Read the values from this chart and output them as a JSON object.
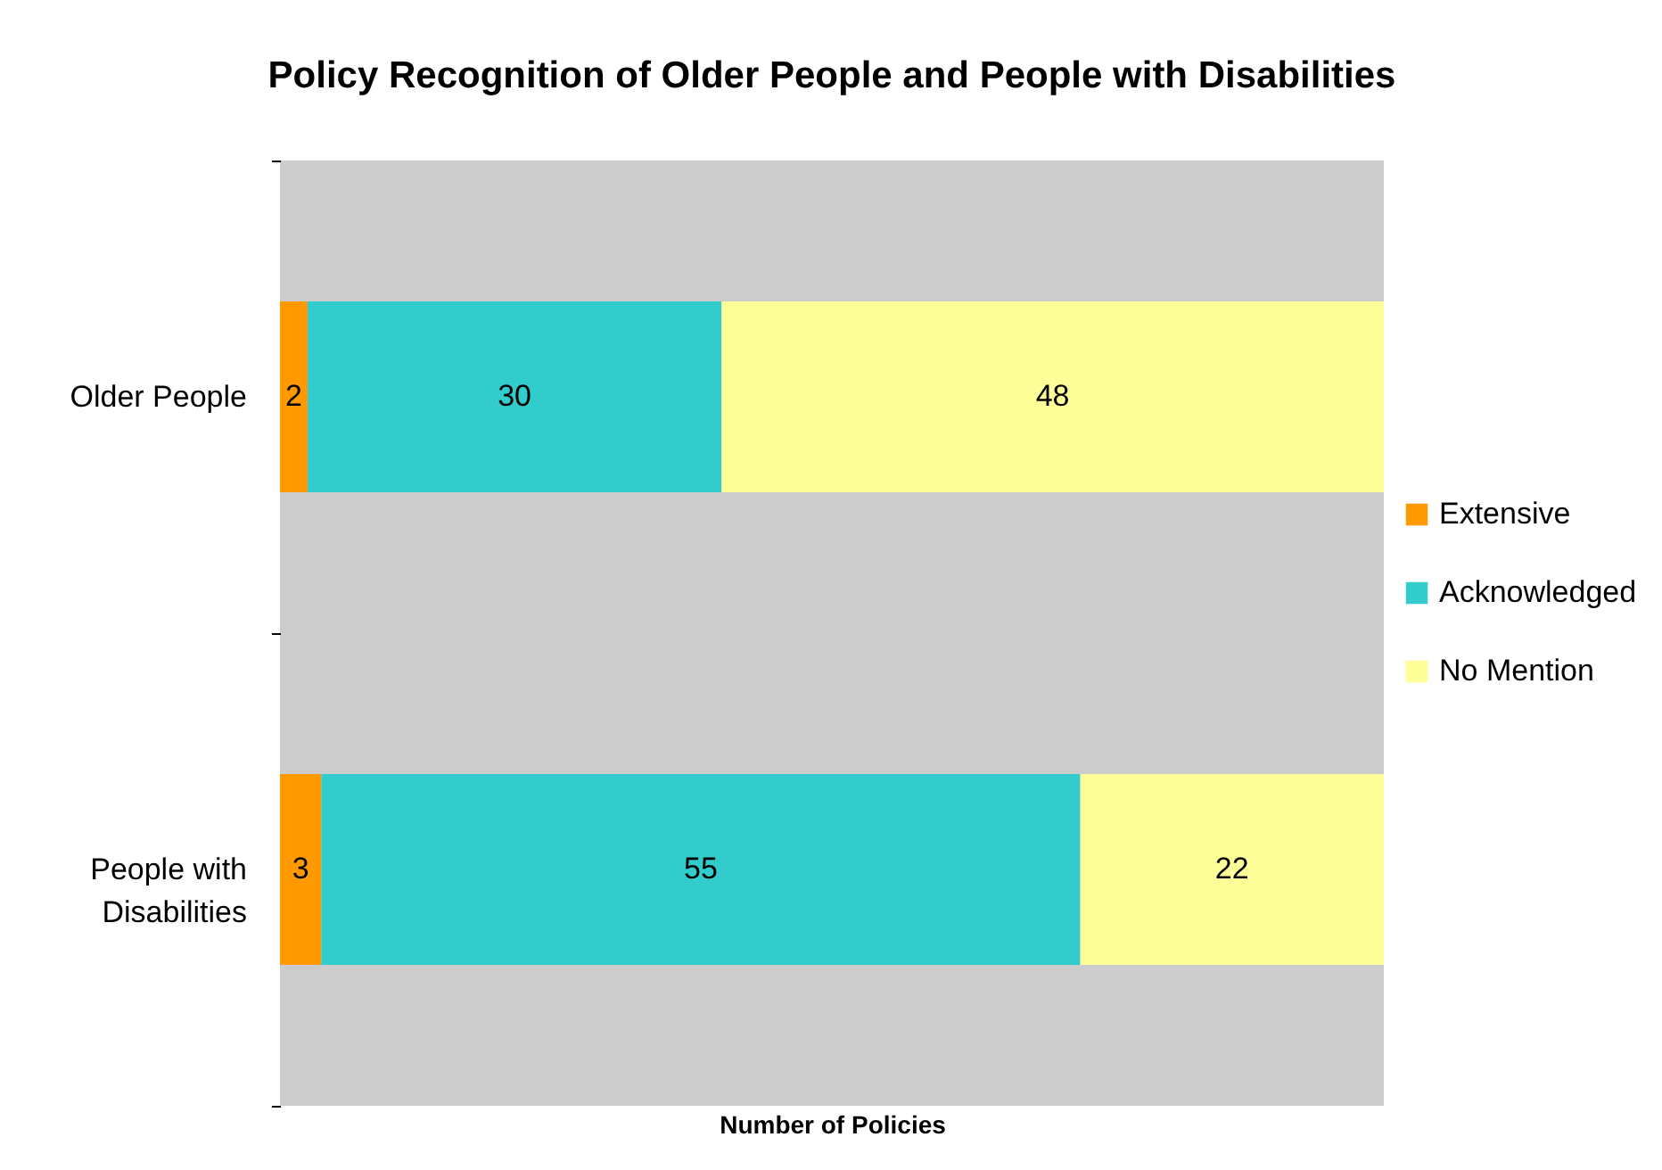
{
  "chart_data": {
    "type": "bar",
    "orientation": "horizontal",
    "stacked": true,
    "title": "Policy Recognition of Older People and People with Disabilities",
    "xlabel": "Number of Policies",
    "categories": [
      "Older People",
      "People with Disabilities"
    ],
    "series": [
      {
        "name": "Extensive",
        "color": "#ff9900",
        "values": [
          2,
          3
        ]
      },
      {
        "name": "Acknowledged",
        "color": "#33cccc",
        "values": [
          30,
          55
        ]
      },
      {
        "name": "No Mention",
        "color": "#ffff99",
        "values": [
          48,
          22
        ]
      }
    ],
    "data_labels": true,
    "legend": "right",
    "grid": false,
    "tick_labels": "y"
  }
}
